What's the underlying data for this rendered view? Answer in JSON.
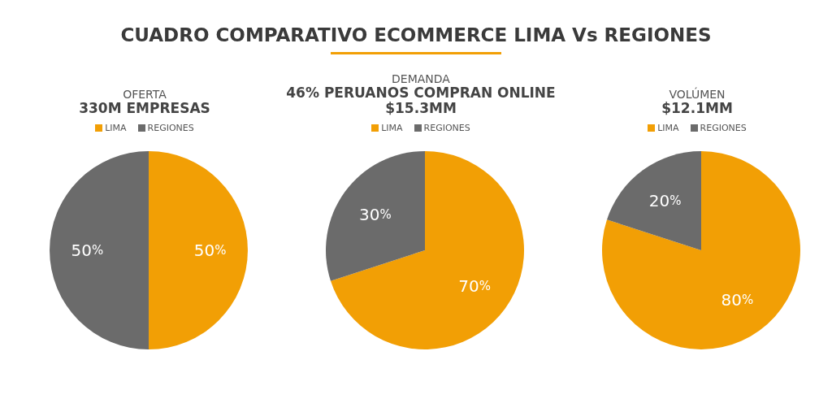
{
  "chart_data": [
    {
      "type": "pie",
      "annotations": [
        "CUADRO COMPARATIVO ECOMMERCE LIMA Vs REGIONES"
      ],
      "title": "OFERTA",
      "subtitle": "330M EMPRESAS",
      "categories": [
        "LIMA",
        "REGIONES"
      ],
      "values": [
        50,
        50
      ],
      "colors": [
        "#f29f05",
        "#6b6b6b"
      ],
      "value_labels": [
        "50%",
        "50%"
      ],
      "legend": "top"
    },
    {
      "type": "pie",
      "title": "DEMANDA",
      "subtitle": "46% PERUANOS COMPRAN ONLINE\n$15.3MM",
      "categories": [
        "LIMA",
        "REGIONES"
      ],
      "values": [
        70,
        30
      ],
      "colors": [
        "#f29f05",
        "#6b6b6b"
      ],
      "value_labels": [
        "70%",
        "30%"
      ],
      "legend": "top"
    },
    {
      "type": "pie",
      "title": "VOLÚMEN",
      "subtitle": "$12.1MM",
      "categories": [
        "LIMA",
        "REGIONES"
      ],
      "values": [
        80,
        20
      ],
      "colors": [
        "#f29f05",
        "#6b6b6b"
      ],
      "value_labels": [
        "80%",
        "20%"
      ],
      "legend": "top"
    }
  ]
}
